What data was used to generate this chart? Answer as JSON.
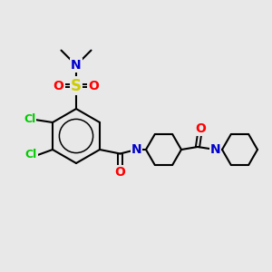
{
  "bg_color": "#e8e8e8",
  "bond_color": "#000000",
  "bond_width": 1.5,
  "figsize": [
    3.0,
    3.0
  ],
  "dpi": 100,
  "colors": {
    "S": "#cccc00",
    "O": "#ff0000",
    "N": "#0000cc",
    "Cl": "#00cc00",
    "C": "#000000"
  }
}
